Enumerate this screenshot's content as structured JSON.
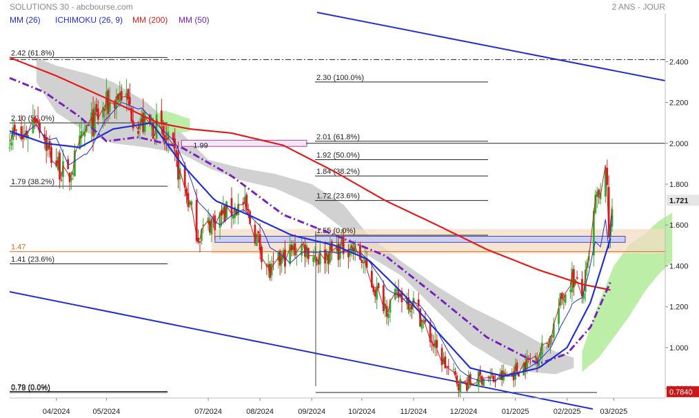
{
  "header": {
    "title": "SOLUTIONS 30 - abcbourse.com",
    "period": "2 ANS - JOUR"
  },
  "legend": [
    {
      "label": "MM (26)",
      "color": "#1f2fd0"
    },
    {
      "label": "ICHIMOKU (26, 9)",
      "color": "#1f2fd0"
    },
    {
      "label": "MM (200)",
      "color": "#e21b1b"
    },
    {
      "label": "MM (50)",
      "color": "#7a1fbf"
    }
  ],
  "colors": {
    "up": "#2fae2f",
    "down": "#d11f1f",
    "ma26": "#1f2fd0",
    "ma200": "#e21b1b",
    "ma50": "#7a1fbf",
    "cloud_bear": "#cfcfcf",
    "cloud_bull": "#b6ec9e",
    "tenkan": "#d11f1f",
    "kijun": "#1f2fd0",
    "channel": "#1f2fd0",
    "zone_fill": "#f3dcc3",
    "box_fill": "#c9cdf3",
    "price_tag": "#c81919"
  },
  "chart_data": {
    "type": "line",
    "title": "SOLUTIONS 30 - abcbourse.com",
    "xlabel": "",
    "ylabel": "",
    "ylim": [
      0.77,
      2.58
    ],
    "y_ticks": [
      "2.400",
      "2.200",
      "2.000",
      "1.800",
      "1.600",
      "1.400",
      "1.200",
      "1.000",
      "0.8000"
    ],
    "y_tick_values": [
      2.4,
      2.2,
      2.0,
      1.8,
      1.6,
      1.4,
      1.2,
      1.0,
      0.8
    ],
    "x_ticks": [
      "04/2024",
      "05/2024",
      "07/2024",
      "08/2024",
      "09/2024",
      "10/2024",
      "11/2024",
      "12/2024",
      "01/2025",
      "02/2025",
      "03/2025"
    ],
    "x_tick_dates": [
      "2024-04-01",
      "2024-05-01",
      "2024-07-01",
      "2024-08-01",
      "2024-09-01",
      "2024-10-01",
      "2024-11-01",
      "2024-12-01",
      "2025-01-01",
      "2025-02-01",
      "2025-03-01"
    ],
    "start_date": "2024-03-04",
    "end_date": "2025-02-28",
    "last_price": "1.721",
    "low_price": "0.7840",
    "price_path": [
      [
        "2024-03-04",
        2.05
      ],
      [
        "2024-03-12",
        2.02
      ],
      [
        "2024-03-20",
        2.15
      ],
      [
        "2024-03-28",
        1.95
      ],
      [
        "2024-04-08",
        1.82
      ],
      [
        "2024-04-18",
        2.05
      ],
      [
        "2024-05-01",
        2.18
      ],
      [
        "2024-05-10",
        2.25
      ],
      [
        "2024-05-20",
        2.1
      ],
      [
        "2024-05-31",
        2.08
      ],
      [
        "2024-06-10",
        1.95
      ],
      [
        "2024-06-18",
        1.75
      ],
      [
        "2024-06-25",
        1.55
      ],
      [
        "2024-07-03",
        1.62
      ],
      [
        "2024-07-12",
        1.66
      ],
      [
        "2024-07-22",
        1.7
      ],
      [
        "2024-07-31",
        1.52
      ],
      [
        "2024-08-07",
        1.36
      ],
      [
        "2024-08-16",
        1.45
      ],
      [
        "2024-08-26",
        1.5
      ],
      [
        "2024-09-05",
        1.44
      ],
      [
        "2024-09-16",
        1.48
      ],
      [
        "2024-09-24",
        1.5
      ],
      [
        "2024-10-01",
        1.43
      ],
      [
        "2024-10-08",
        1.3
      ],
      [
        "2024-10-16",
        1.2
      ],
      [
        "2024-10-24",
        1.26
      ],
      [
        "2024-11-01",
        1.22
      ],
      [
        "2024-11-08",
        1.1
      ],
      [
        "2024-11-15",
        0.98
      ],
      [
        "2024-11-22",
        0.89
      ],
      [
        "2024-11-29",
        0.82
      ],
      [
        "2024-12-06",
        0.83
      ],
      [
        "2024-12-13",
        0.86
      ],
      [
        "2024-12-20",
        0.84
      ],
      [
        "2024-12-31",
        0.88
      ],
      [
        "2025-01-08",
        0.93
      ],
      [
        "2025-01-15",
        0.97
      ],
      [
        "2025-01-22",
        1.05
      ],
      [
        "2025-01-28",
        1.22
      ],
      [
        "2025-02-04",
        1.35
      ],
      [
        "2025-02-10",
        1.25
      ],
      [
        "2025-02-14",
        1.42
      ],
      [
        "2025-02-18",
        1.72
      ],
      [
        "2025-02-21",
        1.72
      ],
      [
        "2025-02-24",
        1.92
      ],
      [
        "2025-02-26",
        1.55
      ],
      [
        "2025-02-28",
        1.72
      ]
    ],
    "series": [
      {
        "name": "MM (200)",
        "points": [
          [
            "2024-03-04",
            2.42
          ],
          [
            "2024-04-01",
            2.33
          ],
          [
            "2024-05-01",
            2.22
          ],
          [
            "2024-06-01",
            2.1
          ],
          [
            "2024-06-20",
            2.07
          ],
          [
            "2024-07-15",
            2.05
          ],
          [
            "2024-08-15",
            1.99
          ],
          [
            "2024-09-15",
            1.86
          ],
          [
            "2024-10-15",
            1.72
          ],
          [
            "2024-11-15",
            1.6
          ],
          [
            "2024-12-15",
            1.48
          ],
          [
            "2025-01-15",
            1.38
          ],
          [
            "2025-02-10",
            1.31
          ],
          [
            "2025-02-28",
            1.28
          ]
        ]
      },
      {
        "name": "MM (50)",
        "points": [
          [
            "2024-03-04",
            2.32
          ],
          [
            "2024-03-25",
            2.25
          ],
          [
            "2024-04-15",
            2.13
          ],
          [
            "2024-05-01",
            2.01
          ],
          [
            "2024-05-20",
            2.03
          ],
          [
            "2024-06-15",
            1.98
          ],
          [
            "2024-07-15",
            1.84
          ],
          [
            "2024-08-15",
            1.65
          ],
          [
            "2024-09-15",
            1.55
          ],
          [
            "2024-10-15",
            1.45
          ],
          [
            "2024-11-15",
            1.25
          ],
          [
            "2024-12-15",
            1.05
          ],
          [
            "2025-01-15",
            0.92
          ],
          [
            "2025-02-01",
            0.97
          ],
          [
            "2025-02-15",
            1.1
          ],
          [
            "2025-02-28",
            1.34
          ]
        ]
      },
      {
        "name": "MM (26)",
        "points": [
          [
            "2024-03-04",
            2.06
          ],
          [
            "2024-03-25",
            2.0
          ],
          [
            "2024-04-15",
            1.98
          ],
          [
            "2024-05-05",
            2.07
          ],
          [
            "2024-05-28",
            2.1
          ],
          [
            "2024-06-15",
            1.9
          ],
          [
            "2024-07-05",
            1.72
          ],
          [
            "2024-07-25",
            1.65
          ],
          [
            "2024-08-20",
            1.55
          ],
          [
            "2024-09-15",
            1.5
          ],
          [
            "2024-10-05",
            1.43
          ],
          [
            "2024-10-25",
            1.27
          ],
          [
            "2024-11-15",
            1.08
          ],
          [
            "2024-12-05",
            0.9
          ],
          [
            "2024-12-25",
            0.86
          ],
          [
            "2025-01-15",
            0.9
          ],
          [
            "2025-02-01",
            1.0
          ],
          [
            "2025-02-15",
            1.22
          ],
          [
            "2025-02-28",
            1.56
          ]
        ]
      }
    ],
    "fibonacci_levels": [
      {
        "label": "2.42  (61.8%)",
        "value": 2.42
      },
      {
        "label": "2.10  (50.0%)",
        "value": 2.1
      },
      {
        "label": "1.79  (38.2%)",
        "value": 1.79
      },
      {
        "label": "1.47",
        "value": 1.47
      },
      {
        "label": "1.41  (23.6%)",
        "value": 1.41
      },
      {
        "label": "0.78  (0.0%)",
        "value": 0.78
      },
      {
        "label": "0.79  (0.0%)",
        "value": 0.785
      },
      {
        "label": "2.30  (100.0%)",
        "value": 2.3
      },
      {
        "label": "2.01  (61.8%)",
        "value": 2.01
      },
      {
        "label": "1.92  (50.0%)",
        "value": 1.92
      },
      {
        "label": "1.84  (38.2%)",
        "value": 1.84
      },
      {
        "label": "1.72  (23.6%)",
        "value": 1.72
      },
      {
        "label": "1.55  (0.0%)",
        "value": 1.55
      }
    ],
    "box_label": "1.99",
    "grid": false,
    "legend_position": "top-left"
  }
}
